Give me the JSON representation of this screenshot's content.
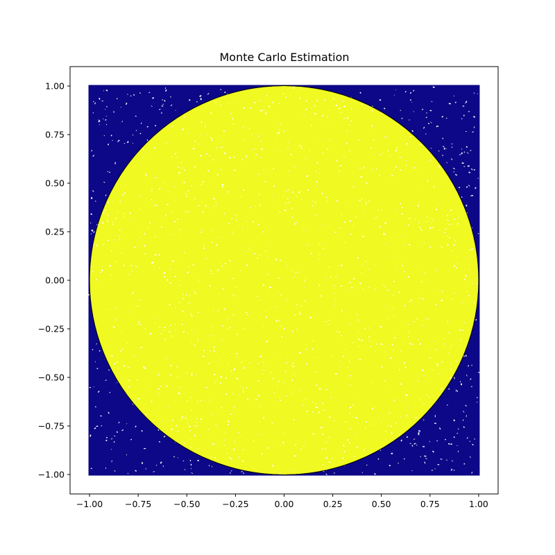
{
  "chart_data": {
    "type": "scatter",
    "title": "Monte Carlo Estimation",
    "xlabel": "",
    "ylabel": "",
    "xlim": [
      -1.1,
      1.1
    ],
    "ylim": [
      -1.1,
      1.1
    ],
    "xticks": [
      "−1.00",
      "−0.75",
      "−0.50",
      "−0.25",
      "0.00",
      "0.25",
      "0.50",
      "0.75",
      "1.00"
    ],
    "yticks": [
      "1.00",
      "0.75",
      "0.50",
      "0.25",
      "0.00",
      "−0.25",
      "−0.50",
      "−0.75",
      "−1.00"
    ],
    "xtick_values": [
      -1.0,
      -0.75,
      -0.5,
      -0.25,
      0.0,
      0.25,
      0.5,
      0.75,
      1.0
    ],
    "ytick_values": [
      1.0,
      0.75,
      0.5,
      0.25,
      0.0,
      -0.25,
      -0.5,
      -0.75,
      -1.0
    ],
    "grid": false,
    "legend": "none",
    "sample_region": {
      "x": [
        -1.0,
        1.0
      ],
      "y": [
        -1.0,
        1.0
      ]
    },
    "series": [
      {
        "values": "points inside unit circle",
        "color": "#f0f921"
      },
      {
        "values": "points outside unit circle",
        "color": "#0d0887"
      }
    ],
    "circle": {
      "center": [
        0.0,
        0.0
      ],
      "radius": 1.0,
      "color": "#000000"
    }
  }
}
